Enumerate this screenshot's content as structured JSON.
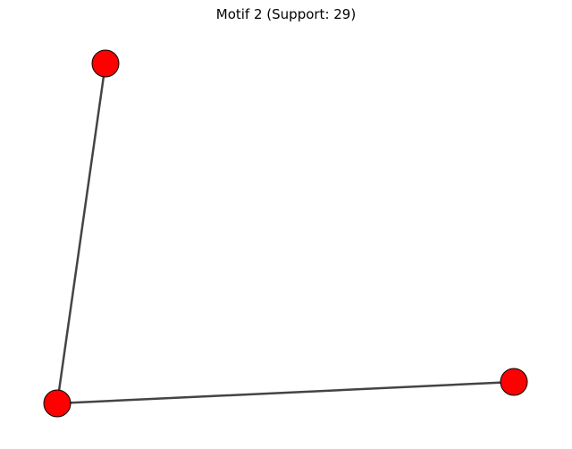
{
  "figure": {
    "title": "Motif 2 (Support: 29)"
  },
  "graph": {
    "node_color": "#ff0000",
    "node_outline_color": "#000000",
    "edge_color": "#444444",
    "nodes": [
      {
        "id": "n1"
      },
      {
        "id": "n2"
      },
      {
        "id": "n3"
      }
    ],
    "edges": [
      {
        "source": "n1",
        "target": "n2"
      },
      {
        "source": "n2",
        "target": "n3"
      }
    ]
  }
}
